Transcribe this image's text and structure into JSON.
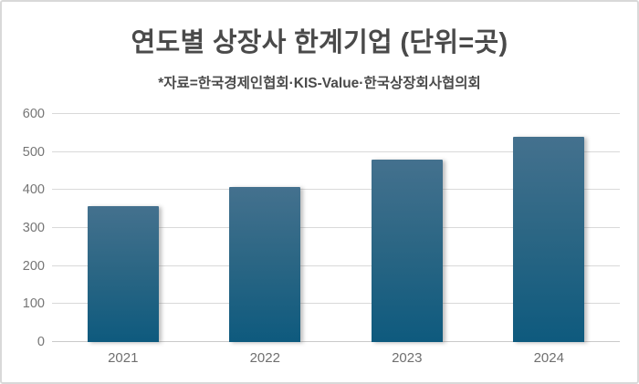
{
  "chart": {
    "title": "연도별 상장사 한계기업 (단위=곳)",
    "subtitle": "*자료=한국경제인협회·KIS-Value·한국상장회사협의회"
  },
  "chart_data": {
    "type": "bar",
    "title": "연도별 상장사 한계기업 (단위=곳)",
    "subtitle": "*자료=한국경제인협회·KIS-Value·한국상장회사협의회",
    "categories": [
      "2021",
      "2022",
      "2023",
      "2024"
    ],
    "values": [
      357,
      409,
      480,
      539
    ],
    "xlabel": "",
    "ylabel": "",
    "ylim": [
      0,
      600
    ],
    "ytick_step": 100,
    "yticks": [
      0,
      100,
      200,
      300,
      400,
      500,
      600
    ],
    "grid": true,
    "legend": false,
    "colors": {
      "bar_gradient_top": "#44718e",
      "bar_gradient_bottom": "#0e5a7e",
      "gridline": "#d9d9d9",
      "axis_baseline": "#c9c9c9",
      "title_text": "#4a4a4a",
      "tick_text": "#757575",
      "background": "#ffffff",
      "frame_border": "#d9d9d9"
    }
  }
}
